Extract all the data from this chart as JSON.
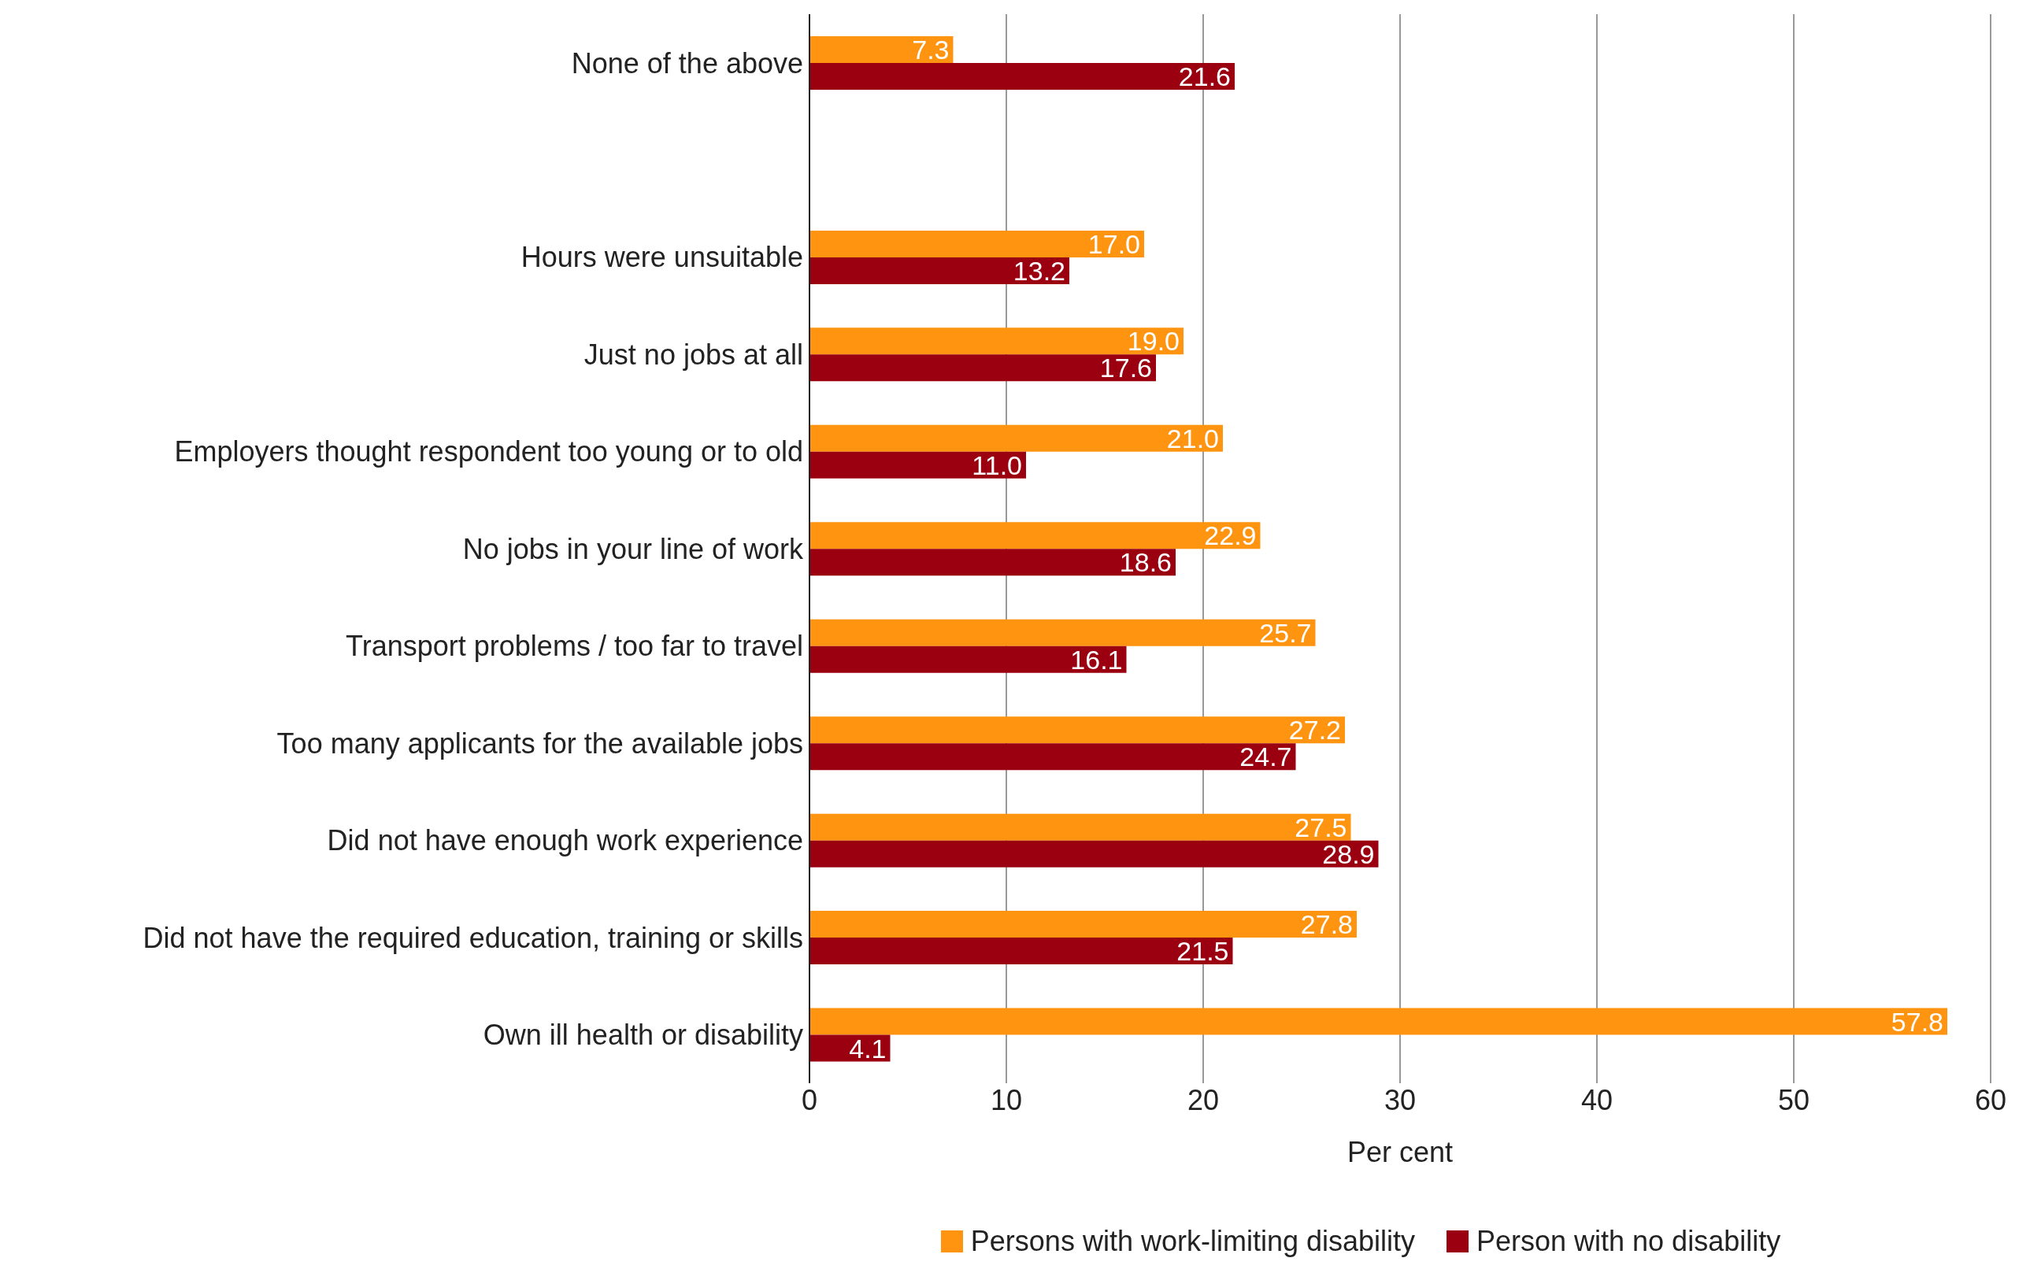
{
  "chart_data": {
    "type": "bar",
    "orientation": "horizontal",
    "xlabel": "Per cent",
    "categories": [
      "None of the above",
      null,
      "Hours were unsuitable",
      "Just no jobs at all",
      "Employers thought respondent too young or to old",
      "No jobs in your line of work",
      "Transport problems / too far to travel",
      "Too many applicants for the available jobs",
      "Did not have enough work experience",
      "Did not have the required education, training or skills",
      "Own ill health or disability"
    ],
    "series": [
      {
        "name": "Persons with work-limiting disability",
        "color": "#ff9410",
        "values": [
          7.3,
          null,
          17.0,
          19.0,
          21.0,
          22.9,
          25.7,
          27.2,
          27.5,
          27.8,
          57.8
        ],
        "value_labels": [
          "7.3",
          null,
          "17.0",
          "19.0",
          "21.0",
          "22.9",
          "25.7",
          "27.2",
          "27.5",
          "27.8",
          "57.8"
        ]
      },
      {
        "name": "Person with no disability",
        "color": "#9b0010",
        "values": [
          21.6,
          null,
          13.2,
          17.6,
          11.0,
          18.6,
          16.1,
          24.7,
          28.9,
          21.5,
          4.1
        ],
        "value_labels": [
          "21.6",
          null,
          "13.2",
          "17.6",
          "11.0",
          "18.6",
          "16.1",
          "24.7",
          "28.9",
          "21.5",
          "4.1"
        ]
      }
    ],
    "xlim": [
      0,
      60
    ],
    "xticks": [
      0,
      10,
      20,
      30,
      40,
      50,
      60
    ],
    "grid": "x",
    "legend": "bottom"
  }
}
